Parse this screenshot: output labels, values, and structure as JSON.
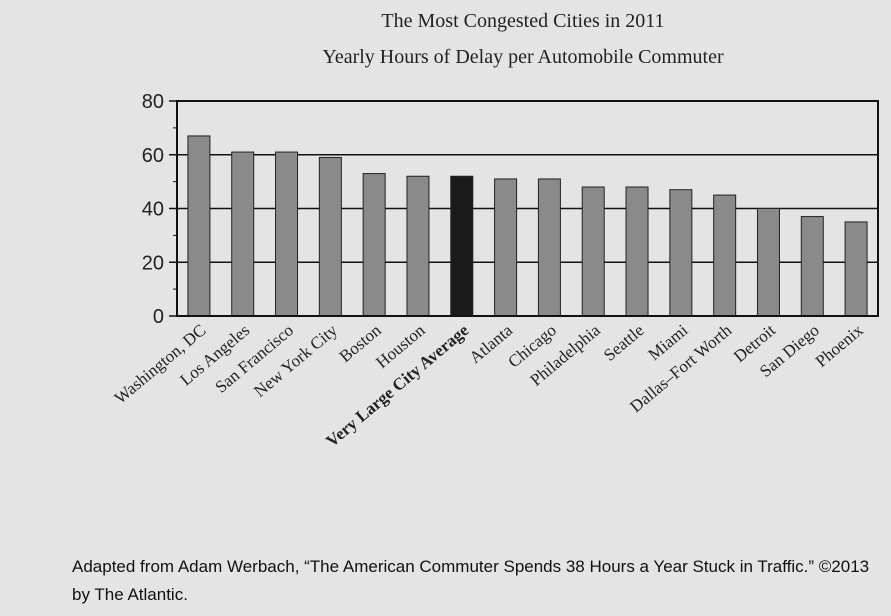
{
  "chart_data": {
    "type": "bar",
    "title": "The Most Congested Cities in 2011",
    "subtitle": "Yearly Hours of Delay per Automobile Commuter",
    "xlabel": "",
    "ylabel": "",
    "ylim": [
      0,
      80
    ],
    "yticks": [
      0,
      20,
      40,
      60,
      80
    ],
    "grid": true,
    "categories": [
      "Washington, DC",
      "Los Angeles",
      "San Francisco",
      "New York City",
      "Boston",
      "Houston",
      "Very Large City Average",
      "Atlanta",
      "Chicago",
      "Philadelphia",
      "Seattle",
      "Miami",
      "Dallas–Fort Worth",
      "Detroit",
      "San Diego",
      "Phoenix"
    ],
    "values": [
      67,
      61,
      61,
      59,
      53,
      52,
      52,
      51,
      51,
      48,
      48,
      47,
      45,
      40,
      37,
      35
    ],
    "highlight_category": "Very Large City Average",
    "bar_color": "#8a8a8a",
    "highlight_color": "#1a1a1a"
  },
  "source": "Adapted from Adam Werbach, “The American Commuter Spends 38 Hours a Year Stuck in Traffic.” ©2013 by The Atlantic."
}
